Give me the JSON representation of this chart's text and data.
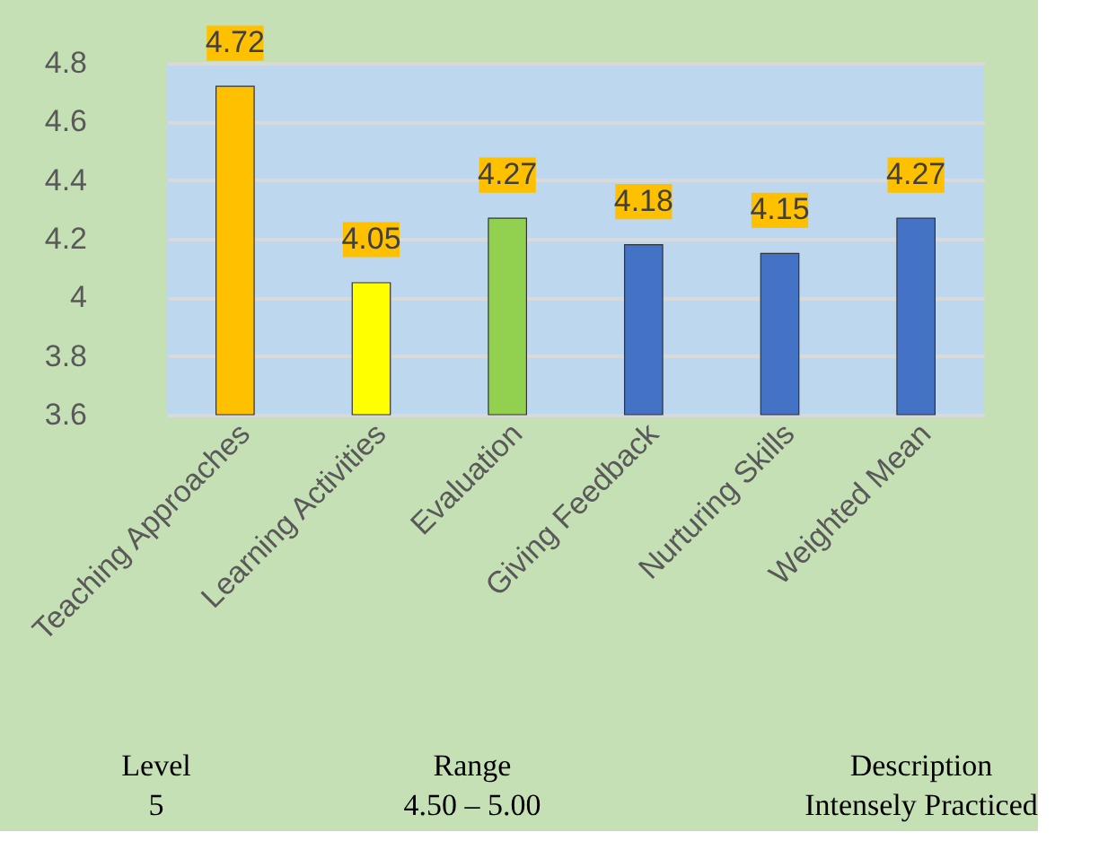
{
  "chart_data": {
    "type": "bar",
    "categories": [
      "Teaching Approaches",
      "Learning Activities",
      "Evaluation",
      "Giving Feedback",
      "Nurturing Skills",
      "Weighted Mean"
    ],
    "values": [
      4.72,
      4.05,
      4.27,
      4.18,
      4.15,
      4.27
    ],
    "colors": [
      "#ffc000",
      "#ffff00",
      "#92d050",
      "#4472c4",
      "#4472c4",
      "#4472c4"
    ],
    "ylim": [
      3.6,
      4.8
    ],
    "yticks": [
      3.6,
      3.8,
      4,
      4.2,
      4.4,
      4.6,
      4.8
    ],
    "grid": "y",
    "data_labels": true,
    "annotations": [
      "Level",
      "Range",
      "Description",
      "5",
      "4.50 – 5.00",
      "Intensely Practiced"
    ]
  }
}
